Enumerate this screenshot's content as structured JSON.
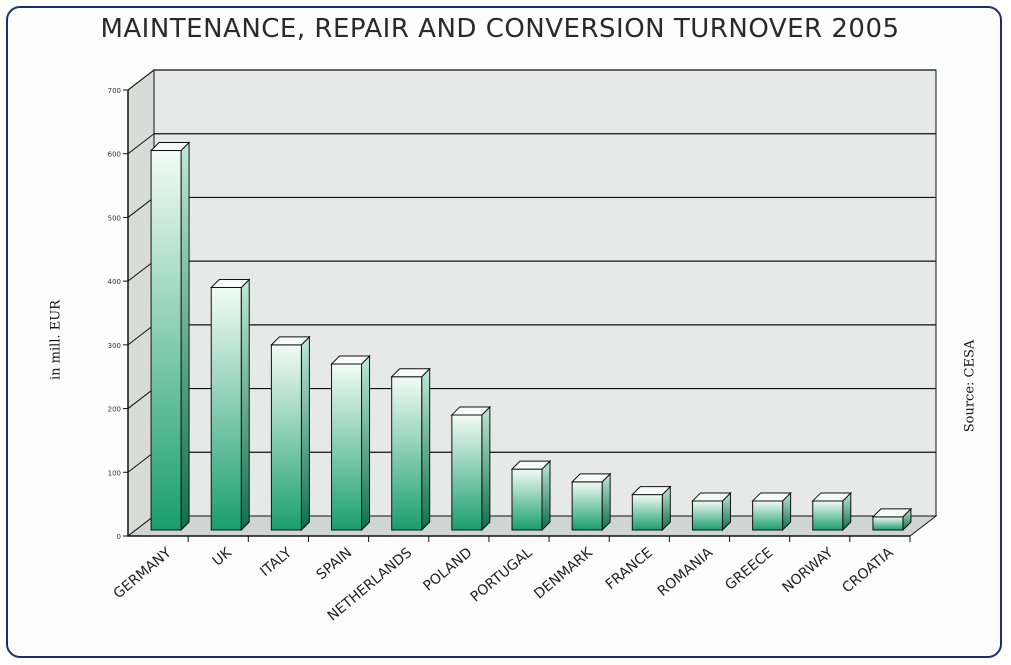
{
  "chart_data": {
    "type": "bar",
    "title": "MAINTENANCE, REPAIR AND CONVERSION TURNOVER 2005",
    "ylabel": "in mill. EUR",
    "xlabel": "",
    "source": "Source: CESA",
    "categories": [
      "GERMANY",
      "UK",
      "ITALY",
      "SPAIN",
      "NETHERLANDS",
      "POLAND",
      "PORTUGAL",
      "DENMARK",
      "FRANCE",
      "ROMANIA",
      "GREECE",
      "NORWAY",
      "CROATIA"
    ],
    "values": [
      605,
      390,
      300,
      270,
      250,
      190,
      105,
      85,
      65,
      55,
      55,
      55,
      30
    ],
    "yticks": [
      "0",
      "100",
      "200",
      "300",
      "400",
      "500",
      "600",
      "700"
    ],
    "ylim": [
      0,
      700
    ],
    "grid": true,
    "legend": "none",
    "style": "3d-cylinder-bars",
    "colors": {
      "bar_top": "#f2fbf7",
      "bar_bottom": "#1a9e6e",
      "frame": "#1f2a78",
      "plot_bg": "#e6e9e7"
    }
  }
}
